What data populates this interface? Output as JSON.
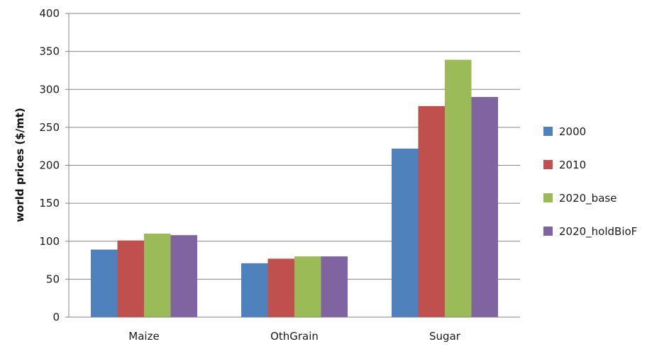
{
  "chart_data": {
    "type": "bar",
    "title": "",
    "xlabel": "",
    "ylabel": "world prices ($/mt)",
    "ylim": [
      0,
      400
    ],
    "yticks": [
      0,
      50,
      100,
      150,
      200,
      250,
      300,
      350,
      400
    ],
    "grid": true,
    "legend_position": "right",
    "categories": [
      "Maize",
      "OthGrain",
      "Sugar"
    ],
    "series": [
      {
        "name": "2000",
        "color": "#4f81bd",
        "values": [
          89,
          71,
          222
        ]
      },
      {
        "name": "2010",
        "color": "#c0504d",
        "values": [
          101,
          77,
          278
        ]
      },
      {
        "name": "2020_base",
        "color": "#9bbb59",
        "values": [
          110,
          80,
          339
        ]
      },
      {
        "name": "2020_holdBioF",
        "color": "#8064a2",
        "values": [
          108,
          80,
          290
        ]
      }
    ]
  }
}
